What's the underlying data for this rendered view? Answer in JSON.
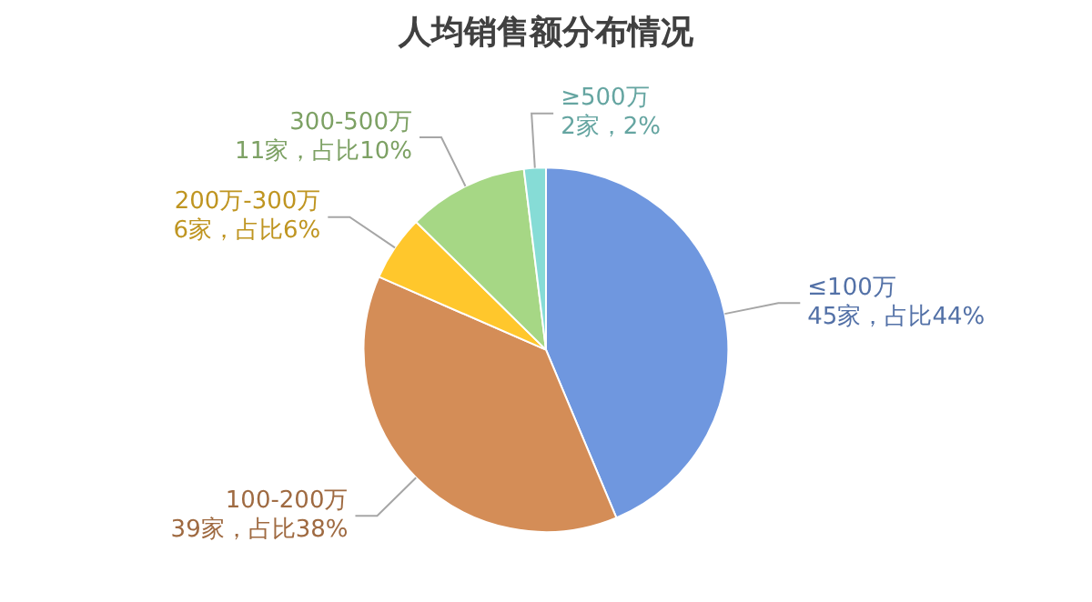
{
  "chart_data": {
    "type": "pie",
    "title": "人均销售额分布情况",
    "categories": [
      "≤100万",
      "100-200万",
      "200万-300万",
      "300-500万",
      "≥500万"
    ],
    "values": [
      45,
      39,
      6,
      11,
      2
    ],
    "colors": [
      "#6f97df",
      "#d48d57",
      "#ffc72c",
      "#a6d785",
      "#86dcd6"
    ],
    "value_labels": [
      "45家，占比44%",
      "39家，占比38%",
      "6家，占比6%",
      "11家，占比10%",
      "2家，2%"
    ],
    "legend": false
  }
}
